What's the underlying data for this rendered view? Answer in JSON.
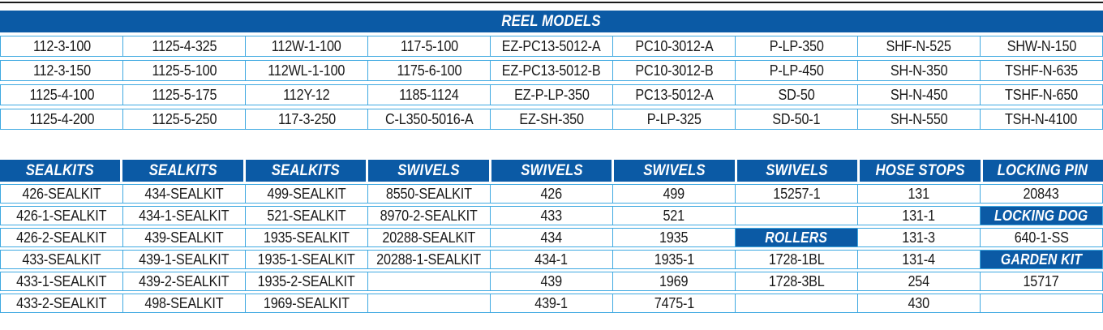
{
  "colors": {
    "header_blue": "#0B5AA5",
    "border_cyan": "#3FA9E1",
    "text_dark": "#1A1A1A",
    "header_text": "#FFFFFF",
    "top_rule": "#1A1A1A"
  },
  "reel_models": {
    "title": "REEL MODELS",
    "rows": [
      [
        "112-3-100",
        "1125-4-325",
        "112W-1-100",
        "117-5-100",
        "EZ-PC13-5012-A",
        "PC10-3012-A",
        "P-LP-350",
        "SHF-N-525",
        "SHW-N-150"
      ],
      [
        "112-3-150",
        "1125-5-100",
        "112WL-1-100",
        "1175-6-100",
        "EZ-PC13-5012-B",
        "PC10-3012-B",
        "P-LP-450",
        "SH-N-350",
        "TSHF-N-635"
      ],
      [
        "1125-4-100",
        "1125-5-175",
        "112Y-12",
        "1185-1124",
        "EZ-P-LP-350",
        "PC13-5012-A",
        "SD-50",
        "SH-N-450",
        "TSHF-N-650"
      ],
      [
        "1125-4-200",
        "1125-5-250",
        "117-3-250",
        "C-L350-5016-A",
        "EZ-SH-350",
        "P-LP-325",
        "SD-50-1",
        "SH-N-550",
        "TSH-N-4100"
      ]
    ]
  },
  "parts": {
    "headers": [
      "SEALKITS",
      "SEALKITS",
      "SEALKITS",
      "SWIVELS",
      "SWIVELS",
      "SWIVELS",
      "SWIVELS",
      "HOSE STOPS",
      "LOCKING PIN"
    ],
    "rows": [
      [
        {
          "v": "426-SEALKIT"
        },
        {
          "v": "434-SEALKIT"
        },
        {
          "v": "499-SEALKIT"
        },
        {
          "v": "8550-SEALKIT"
        },
        {
          "v": "426"
        },
        {
          "v": "499"
        },
        {
          "v": "15257-1"
        },
        {
          "v": "131"
        },
        {
          "v": "20843"
        }
      ],
      [
        {
          "v": "426-1-SEALKIT"
        },
        {
          "v": "434-1-SEALKIT"
        },
        {
          "v": "521-SEALKIT"
        },
        {
          "v": "8970-2-SEALKIT"
        },
        {
          "v": "433"
        },
        {
          "v": "521"
        },
        {
          "v": ""
        },
        {
          "v": "131-1"
        },
        {
          "v": "LOCKING DOG",
          "label": true
        }
      ],
      [
        {
          "v": "426-2-SEALKIT"
        },
        {
          "v": "439-SEALKIT"
        },
        {
          "v": "1935-SEALKIT"
        },
        {
          "v": "20288-SEALKIT"
        },
        {
          "v": "434"
        },
        {
          "v": "1935"
        },
        {
          "v": "ROLLERS",
          "label": true
        },
        {
          "v": "131-3"
        },
        {
          "v": "640-1-SS"
        }
      ],
      [
        {
          "v": "433-SEALKIT"
        },
        {
          "v": "439-1-SEALKIT"
        },
        {
          "v": "1935-1-SEALKIT"
        },
        {
          "v": "20288-1-SEALKIT"
        },
        {
          "v": "434-1"
        },
        {
          "v": "1935-1"
        },
        {
          "v": "1728-1BL"
        },
        {
          "v": "131-4"
        },
        {
          "v": "GARDEN KIT",
          "label": true
        }
      ],
      [
        {
          "v": "433-1-SEALKIT"
        },
        {
          "v": "439-2-SEALKIT"
        },
        {
          "v": "1935-2-SEALKIT"
        },
        {
          "v": ""
        },
        {
          "v": "439"
        },
        {
          "v": "1969"
        },
        {
          "v": "1728-3BL"
        },
        {
          "v": "254"
        },
        {
          "v": "15717"
        }
      ],
      [
        {
          "v": "433-2-SEALKIT"
        },
        {
          "v": "498-SEALKIT"
        },
        {
          "v": "1969-SEALKIT"
        },
        {
          "v": ""
        },
        {
          "v": "439-1"
        },
        {
          "v": "7475-1"
        },
        {
          "v": ""
        },
        {
          "v": "430"
        },
        {
          "v": ""
        }
      ]
    ]
  }
}
